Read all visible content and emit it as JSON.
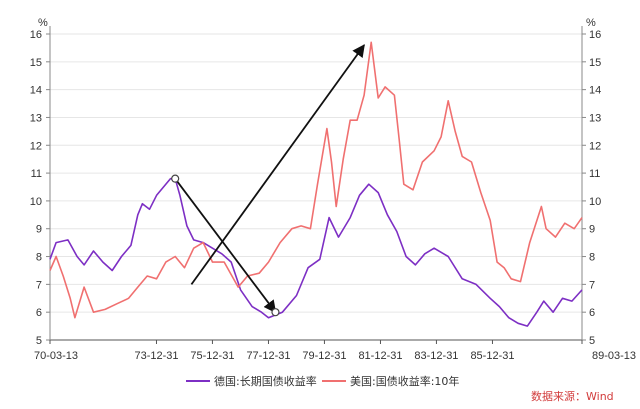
{
  "chart_data": {
    "type": "line",
    "y_unit_left": "%",
    "y_unit_right": "%",
    "ylim": [
      5,
      16
    ],
    "yticks": [
      5,
      6,
      7,
      8,
      9,
      10,
      11,
      12,
      13,
      14,
      15,
      16
    ],
    "xlim": [
      "1970-03-13",
      "1989-03-13"
    ],
    "x_ticks": [
      {
        "date": "1970-03-13",
        "label": "70-03-13"
      },
      {
        "date": "1973-12-31",
        "label": "73-12-31"
      },
      {
        "date": "1975-12-31",
        "label": "75-12-31"
      },
      {
        "date": "1977-12-31",
        "label": "77-12-31"
      },
      {
        "date": "1979-12-31",
        "label": "79-12-31"
      },
      {
        "date": "1981-12-31",
        "label": "81-12-31"
      },
      {
        "date": "1983-12-31",
        "label": "83-12-31"
      },
      {
        "date": "1985-12-31",
        "label": "85-12-31"
      },
      {
        "date": "1989-03-13",
        "label": "89-03-13"
      }
    ],
    "grid": true,
    "legend_position": "bottom",
    "series": [
      {
        "name": "德国:长期国债收益率",
        "color": "#7d2fc4",
        "points": [
          [
            "1970-03-13",
            7.9
          ],
          [
            "1970-06-01",
            8.5
          ],
          [
            "1970-11-01",
            8.6
          ],
          [
            "1971-03-01",
            8.0
          ],
          [
            "1971-06-01",
            7.7
          ],
          [
            "1971-10-01",
            8.2
          ],
          [
            "1972-02-01",
            7.8
          ],
          [
            "1972-06-01",
            7.5
          ],
          [
            "1972-10-01",
            8.0
          ],
          [
            "1973-02-01",
            8.4
          ],
          [
            "1973-05-01",
            9.5
          ],
          [
            "1973-07-01",
            9.9
          ],
          [
            "1973-10-01",
            9.7
          ],
          [
            "1974-01-01",
            10.2
          ],
          [
            "1974-04-01",
            10.5
          ],
          [
            "1974-07-01",
            10.8
          ],
          [
            "1974-09-01",
            10.8
          ],
          [
            "1974-11-01",
            10.2
          ],
          [
            "1975-02-01",
            9.1
          ],
          [
            "1975-05-01",
            8.6
          ],
          [
            "1975-09-01",
            8.5
          ],
          [
            "1976-01-01",
            8.3
          ],
          [
            "1976-05-01",
            8.1
          ],
          [
            "1976-09-01",
            7.8
          ],
          [
            "1977-01-01",
            6.8
          ],
          [
            "1977-06-01",
            6.2
          ],
          [
            "1977-10-01",
            6.0
          ],
          [
            "1978-01-01",
            5.8
          ],
          [
            "1978-04-01",
            5.9
          ],
          [
            "1978-07-01",
            6.0
          ],
          [
            "1979-01-01",
            6.6
          ],
          [
            "1979-06-01",
            7.6
          ],
          [
            "1979-11-01",
            7.9
          ],
          [
            "1980-03-01",
            9.4
          ],
          [
            "1980-07-01",
            8.7
          ],
          [
            "1980-12-01",
            9.4
          ],
          [
            "1981-04-01",
            10.2
          ],
          [
            "1981-08-01",
            10.6
          ],
          [
            "1981-12-01",
            10.3
          ],
          [
            "1982-04-01",
            9.5
          ],
          [
            "1982-08-01",
            8.9
          ],
          [
            "1982-12-01",
            8.0
          ],
          [
            "1983-04-01",
            7.7
          ],
          [
            "1983-08-01",
            8.1
          ],
          [
            "1983-12-01",
            8.3
          ],
          [
            "1984-06-01",
            8.0
          ],
          [
            "1984-12-01",
            7.2
          ],
          [
            "1985-06-01",
            7.0
          ],
          [
            "1985-12-01",
            6.5
          ],
          [
            "1986-04-01",
            6.2
          ],
          [
            "1986-08-01",
            5.8
          ],
          [
            "1986-12-01",
            5.6
          ],
          [
            "1987-04-01",
            5.5
          ],
          [
            "1987-08-01",
            6.0
          ],
          [
            "1987-11-01",
            6.4
          ],
          [
            "1988-03-01",
            6.0
          ],
          [
            "1988-07-01",
            6.5
          ],
          [
            "1988-11-01",
            6.4
          ],
          [
            "1989-03-13",
            6.8
          ]
        ]
      },
      {
        "name": "美国:国债收益率:10年",
        "color": "#f07070",
        "points": [
          [
            "1970-03-13",
            7.5
          ],
          [
            "1970-06-01",
            8.0
          ],
          [
            "1970-09-01",
            7.3
          ],
          [
            "1970-12-01",
            6.5
          ],
          [
            "1971-02-01",
            5.8
          ],
          [
            "1971-06-01",
            6.9
          ],
          [
            "1971-10-01",
            6.0
          ],
          [
            "1972-03-01",
            6.1
          ],
          [
            "1972-08-01",
            6.3
          ],
          [
            "1973-01-01",
            6.5
          ],
          [
            "1973-05-01",
            6.9
          ],
          [
            "1973-09-01",
            7.3
          ],
          [
            "1974-01-01",
            7.2
          ],
          [
            "1974-05-01",
            7.8
          ],
          [
            "1974-09-01",
            8.0
          ],
          [
            "1975-01-01",
            7.6
          ],
          [
            "1975-05-01",
            8.3
          ],
          [
            "1975-09-01",
            8.5
          ],
          [
            "1976-01-01",
            7.8
          ],
          [
            "1976-06-01",
            7.8
          ],
          [
            "1976-12-01",
            6.9
          ],
          [
            "1977-04-01",
            7.3
          ],
          [
            "1977-09-01",
            7.4
          ],
          [
            "1978-01-01",
            7.8
          ],
          [
            "1978-06-01",
            8.5
          ],
          [
            "1978-11-01",
            9.0
          ],
          [
            "1979-03-01",
            9.1
          ],
          [
            "1979-07-01",
            9.0
          ],
          [
            "1979-10-01",
            10.6
          ],
          [
            "1980-02-01",
            12.6
          ],
          [
            "1980-04-01",
            11.4
          ],
          [
            "1980-06-01",
            9.8
          ],
          [
            "1980-09-01",
            11.5
          ],
          [
            "1980-12-01",
            12.9
          ],
          [
            "1981-03-01",
            12.9
          ],
          [
            "1981-06-01",
            13.8
          ],
          [
            "1981-09-01",
            15.7
          ],
          [
            "1981-12-01",
            13.7
          ],
          [
            "1982-03-01",
            14.1
          ],
          [
            "1982-07-01",
            13.8
          ],
          [
            "1982-09-01",
            12.2
          ],
          [
            "1982-11-01",
            10.6
          ],
          [
            "1983-03-01",
            10.4
          ],
          [
            "1983-07-01",
            11.4
          ],
          [
            "1983-12-01",
            11.8
          ],
          [
            "1984-03-01",
            12.3
          ],
          [
            "1984-06-01",
            13.6
          ],
          [
            "1984-09-01",
            12.5
          ],
          [
            "1984-12-01",
            11.6
          ],
          [
            "1985-04-01",
            11.4
          ],
          [
            "1985-08-01",
            10.3
          ],
          [
            "1985-12-01",
            9.3
          ],
          [
            "1986-03-01",
            7.8
          ],
          [
            "1986-06-01",
            7.6
          ],
          [
            "1986-09-01",
            7.2
          ],
          [
            "1987-01-01",
            7.1
          ],
          [
            "1987-05-01",
            8.5
          ],
          [
            "1987-10-01",
            9.8
          ],
          [
            "1987-12-01",
            9.0
          ],
          [
            "1988-04-01",
            8.7
          ],
          [
            "1988-08-01",
            9.2
          ],
          [
            "1988-12-01",
            9.0
          ],
          [
            "1989-03-13",
            9.4
          ]
        ]
      }
    ],
    "annotations": [
      {
        "type": "arrow",
        "from": [
          "1974-09-01",
          10.8
        ],
        "to": [
          "1978-04-01",
          6.0
        ]
      },
      {
        "type": "arrow",
        "from": [
          "1975-04-01",
          7.0
        ],
        "to": [
          "1981-06-01",
          15.6
        ]
      }
    ],
    "source_note": "数据来源：Wind"
  }
}
